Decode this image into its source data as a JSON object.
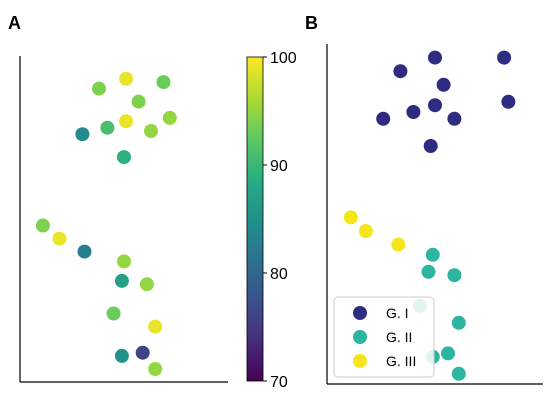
{
  "panels": [
    {
      "letter": "A",
      "chart_data": {
        "type": "scatter",
        "title": "",
        "xlabel": "",
        "ylabel": "",
        "xlim": [
          0,
          10
        ],
        "ylim": [
          0,
          10
        ],
        "color_encoding": "continuous",
        "colormap": "viridis",
        "points": [
          {
            "x": 5.1,
            "y": 9.3,
            "value": 99
          },
          {
            "x": 3.8,
            "y": 9.0,
            "value": 94
          },
          {
            "x": 6.9,
            "y": 9.2,
            "value": 93
          },
          {
            "x": 5.7,
            "y": 8.6,
            "value": 94
          },
          {
            "x": 5.1,
            "y": 8.0,
            "value": 99
          },
          {
            "x": 7.2,
            "y": 8.1,
            "value": 95
          },
          {
            "x": 4.2,
            "y": 7.8,
            "value": 91
          },
          {
            "x": 6.3,
            "y": 7.7,
            "value": 95
          },
          {
            "x": 3.0,
            "y": 7.6,
            "value": 84
          },
          {
            "x": 5.0,
            "y": 6.9,
            "value": 89
          },
          {
            "x": 1.1,
            "y": 4.8,
            "value": 94
          },
          {
            "x": 1.9,
            "y": 4.4,
            "value": 99
          },
          {
            "x": 3.1,
            "y": 4.0,
            "value": 83
          },
          {
            "x": 5.0,
            "y": 3.7,
            "value": 95
          },
          {
            "x": 4.9,
            "y": 3.1,
            "value": 87
          },
          {
            "x": 6.1,
            "y": 3.0,
            "value": 95
          },
          {
            "x": 4.5,
            "y": 2.1,
            "value": 93
          },
          {
            "x": 6.5,
            "y": 1.7,
            "value": 99
          },
          {
            "x": 4.9,
            "y": 0.8,
            "value": 85
          },
          {
            "x": 5.9,
            "y": 0.9,
            "value": 76
          },
          {
            "x": 6.5,
            "y": 0.4,
            "value": 95
          }
        ]
      },
      "colorbar": {
        "min": 70,
        "max": 100,
        "ticks": [
          "100",
          "90",
          "80",
          "70"
        ],
        "tick_values": [
          100,
          90,
          80,
          70
        ]
      }
    },
    {
      "letter": "B",
      "chart_data": {
        "type": "scatter",
        "title": "",
        "xlabel": "",
        "ylabel": "",
        "xlim": [
          0,
          10
        ],
        "ylim": [
          0,
          10
        ],
        "legend_position": "bottom-left",
        "series": [
          {
            "name": "G. I",
            "color": "#2d2c80",
            "points": [
              {
                "x": 5.0,
                "y": 9.6
              },
              {
                "x": 3.4,
                "y": 9.2
              },
              {
                "x": 8.2,
                "y": 9.6
              },
              {
                "x": 5.4,
                "y": 8.8
              },
              {
                "x": 5.0,
                "y": 8.2
              },
              {
                "x": 4.0,
                "y": 8.0
              },
              {
                "x": 2.6,
                "y": 7.8
              },
              {
                "x": 5.9,
                "y": 7.8
              },
              {
                "x": 8.4,
                "y": 8.3
              },
              {
                "x": 4.8,
                "y": 7.0
              }
            ]
          },
          {
            "name": "G. II",
            "color": "#2eb5a0",
            "points": [
              {
                "x": 4.9,
                "y": 3.8
              },
              {
                "x": 4.7,
                "y": 3.3
              },
              {
                "x": 5.9,
                "y": 3.2
              },
              {
                "x": 4.3,
                "y": 2.3
              },
              {
                "x": 6.1,
                "y": 1.8
              },
              {
                "x": 4.9,
                "y": 0.8
              },
              {
                "x": 5.6,
                "y": 0.9
              },
              {
                "x": 6.1,
                "y": 0.3
              }
            ]
          },
          {
            "name": "G. III",
            "color": "#f5e51b",
            "points": [
              {
                "x": 1.1,
                "y": 4.9
              },
              {
                "x": 1.8,
                "y": 4.5
              },
              {
                "x": 3.3,
                "y": 4.1
              }
            ]
          }
        ]
      }
    }
  ]
}
